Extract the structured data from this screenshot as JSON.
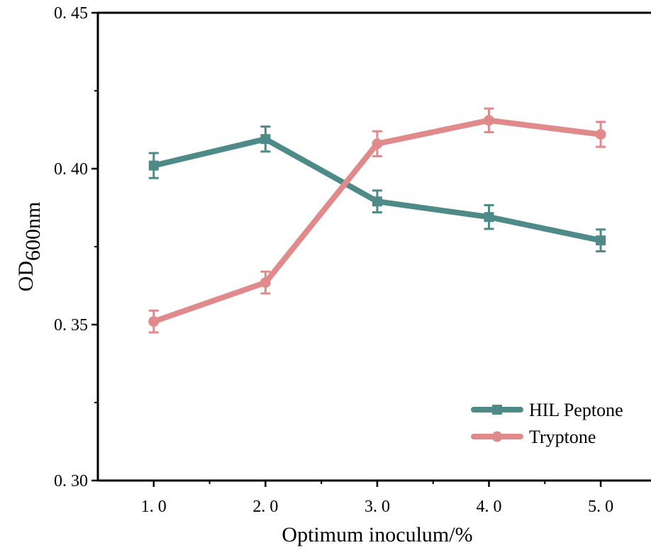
{
  "chart_data": {
    "type": "line",
    "title": "",
    "xlabel": "Optimum inoculum/%",
    "ylabel_main": "OD",
    "ylabel_sub": "600nm",
    "x": [
      1.0,
      2.0,
      3.0,
      4.0,
      5.0
    ],
    "xtick_labels": [
      "1. 0",
      "2. 0",
      "3. 0",
      "4. 0",
      "5. 0"
    ],
    "ytick_values": [
      0.3,
      0.35,
      0.4,
      0.45
    ],
    "ytick_labels": [
      "0. 30",
      "0. 35",
      "0. 40",
      "0. 45"
    ],
    "xlim": [
      0.5,
      5.45
    ],
    "ylim": [
      0.3,
      0.45
    ],
    "grid": false,
    "legend_position": "bottom-right",
    "series": [
      {
        "name": "HIL Peptone",
        "color": "#4e8b88",
        "marker": "square",
        "values": [
          0.401,
          0.4095,
          0.3895,
          0.3845,
          0.377
        ],
        "errors": [
          0.004,
          0.004,
          0.0035,
          0.0038,
          0.0035
        ]
      },
      {
        "name": "Tryptone",
        "color": "#e08a8c",
        "marker": "circle",
        "values": [
          0.351,
          0.3635,
          0.408,
          0.4155,
          0.411
        ],
        "errors": [
          0.0035,
          0.0035,
          0.004,
          0.0038,
          0.004
        ]
      }
    ]
  }
}
